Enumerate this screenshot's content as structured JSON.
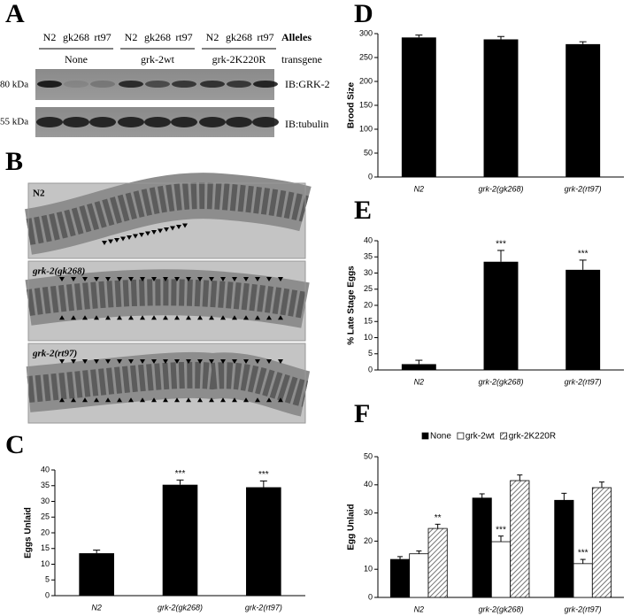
{
  "panel_labels": [
    "A",
    "B",
    "C",
    "D",
    "E",
    "F"
  ],
  "blot": {
    "alleles": [
      "N2",
      "gk268",
      "rt97",
      "N2",
      "gk268",
      "rt97",
      "N2",
      "gk268",
      "rt97"
    ],
    "alleles_title": "Alleles",
    "groups": [
      "None",
      "grk-2wt",
      "grk-2K220R"
    ],
    "transgene_title": "transgene",
    "rows": [
      {
        "marker": "80 kDa",
        "antibody": "IB:GRK-2"
      },
      {
        "marker": "55 kDa",
        "antibody": "IB:tubulin"
      }
    ]
  },
  "micrographs": [
    "N2",
    "grk-2(gk268)",
    "grk-2(rt97)"
  ],
  "chart_data": [
    {
      "type": "bar",
      "ylabel": "Eggs Unlaid",
      "categories": [
        "N2",
        "grk-2(gk268)",
        "grk-2(rt97)"
      ],
      "values": [
        13.5,
        35.3,
        34.5
      ],
      "errors": [
        1,
        1.5,
        2
      ],
      "color": "#000000",
      "ylim": [
        0,
        40
      ],
      "yticks": [
        0,
        5,
        10,
        15,
        20,
        25,
        30,
        35,
        40
      ],
      "annotations": [
        {
          "text": "***",
          "category": "grk-2(gk268)"
        },
        {
          "text": "***",
          "category": "grk-2(rt97)"
        }
      ]
    },
    {
      "type": "bar",
      "ylabel": "Brood Size",
      "categories": [
        "N2",
        "grk-2(gk268)",
        "grk-2(rt97)"
      ],
      "values": [
        292,
        288,
        278
      ],
      "errors": [
        5,
        6,
        5
      ],
      "color": "#000000",
      "ylim": [
        0,
        300
      ],
      "yticks": [
        0,
        50,
        100,
        150,
        200,
        250,
        300
      ]
    },
    {
      "type": "bar",
      "ylabel": "% Late Stage Eggs",
      "categories": [
        "N2",
        "grk-2(gk268)",
        "grk-2(rt97)"
      ],
      "values": [
        1.8,
        33.5,
        31
      ],
      "errors": [
        1.2,
        3.5,
        3
      ],
      "color": "#000000",
      "ylim": [
        0,
        40
      ],
      "yticks": [
        0,
        5,
        10,
        15,
        20,
        25,
        30,
        35,
        40
      ],
      "annotations": [
        {
          "text": "***",
          "category": "grk-2(gk268)"
        },
        {
          "text": "***",
          "category": "grk-2(rt97)"
        }
      ]
    },
    {
      "type": "grouped-bar",
      "ylabel": "Egg Unlaid",
      "categories": [
        "N2",
        "grk-2(gk268)",
        "grk-2(rt97)"
      ],
      "series": [
        {
          "name": "None",
          "color": "#000000",
          "values": [
            13.5,
            35.3,
            34.5
          ],
          "errors": [
            1,
            1.5,
            2.5
          ]
        },
        {
          "name": "grk-2wt",
          "color": "#ffffff",
          "values": [
            15.5,
            19.8,
            12
          ],
          "errors": [
            1,
            2,
            1.5
          ]
        },
        {
          "name": "grk-2K220R",
          "color": "#888888",
          "hatch": true,
          "values": [
            24.5,
            41.5,
            39
          ],
          "errors": [
            1.5,
            2,
            2
          ]
        }
      ],
      "ylim": [
        0,
        50
      ],
      "yticks": [
        0,
        10,
        20,
        30,
        40,
        50
      ],
      "legend": "top",
      "annotations": [
        {
          "text": "**",
          "category": "N2",
          "series": "grk-2K220R"
        },
        {
          "text": "***",
          "category": "grk-2(gk268)",
          "series": "grk-2wt"
        },
        {
          "text": "***",
          "category": "grk-2(rt97)",
          "series": "grk-2wt"
        }
      ]
    }
  ]
}
